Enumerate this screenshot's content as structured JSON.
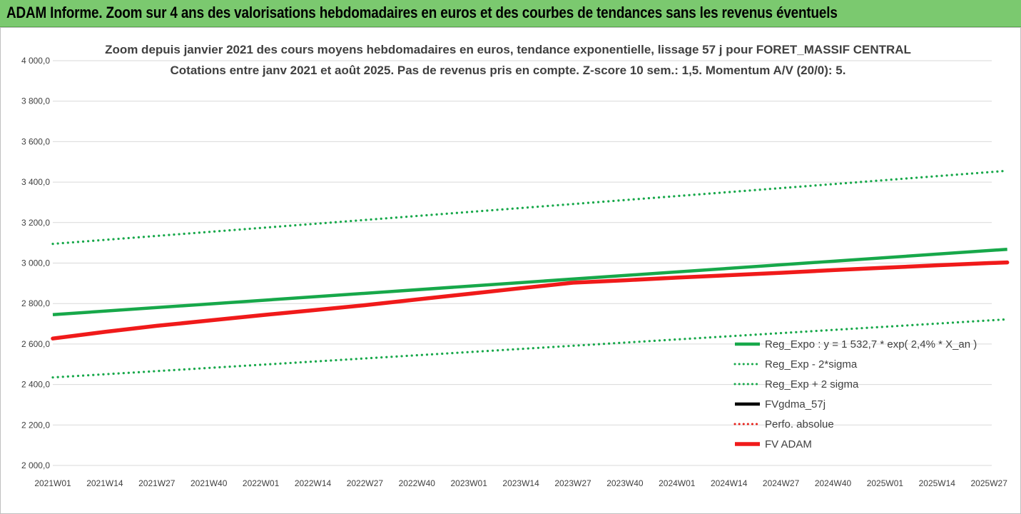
{
  "banner": {
    "title": "ADAM Informe. Zoom sur 4 ans des valorisations hebdomadaires en euros et des courbes de tendances sans les revenus éventuels"
  },
  "chart_data": {
    "type": "line",
    "title": "Zoom depuis janvier 2021 des cours moyens hebdomadaires en euros, tendance exponentielle, lissage 57 j pour FORET_MASSIF CENTRAL",
    "subtitle": "Cotations entre janv 2021 et août 2025.  Pas de revenus pris en compte. Z-score 10 sem.: 1,5. Momentum A/V (20/0): 5.",
    "xlabel": "",
    "ylabel": "",
    "ylim": [
      2000,
      4000
    ],
    "ytick_labels": [
      "2 000,0",
      "2 200,0",
      "2 400,0",
      "2 600,0",
      "2 800,0",
      "3 000,0",
      "3 200,0",
      "3 400,0",
      "3 600,0",
      "3 800,0",
      "4 000,0"
    ],
    "ytick_values": [
      2000,
      2200,
      2400,
      2600,
      2800,
      3000,
      3200,
      3400,
      3600,
      3800,
      4000
    ],
    "x_categories": [
      "2021W01",
      "2021W14",
      "2021W27",
      "2021W40",
      "2022W01",
      "2022W14",
      "2022W27",
      "2022W40",
      "2023W01",
      "2023W14",
      "2023W27",
      "2023W40",
      "2024W01",
      "2024W14",
      "2024W27",
      "2024W40",
      "2025W01",
      "2025W14",
      "2025W27"
    ],
    "x_end_index": 18.35,
    "grid": "horizontal",
    "legend_position": "bottom-right",
    "series": [
      {
        "key": "reg",
        "name": "Reg_Expo : y = 1 532,7 * exp( 2,4% *  X_an )",
        "color": "#17a84a",
        "style": "solid",
        "x": [
          0,
          18.35
        ],
        "values": [
          2745,
          3068
        ]
      },
      {
        "key": "lo",
        "name": "Reg_Exp - 2*sigma",
        "color": "#17a84a",
        "style": "dotted",
        "x": [
          0,
          18.35
        ],
        "values": [
          2435,
          2722
        ]
      },
      {
        "key": "hi",
        "name": "Reg_Exp + 2 sigma",
        "color": "#17a84a",
        "style": "dotted",
        "x": [
          0,
          18.35
        ],
        "values": [
          3095,
          3456
        ]
      },
      {
        "key": "gdma",
        "name": "FVgdma_57j",
        "color": "#000000",
        "style": "solid",
        "x": [],
        "values": []
      },
      {
        "key": "perfo",
        "name": "Perfo. absolue",
        "color": "#e8211b",
        "style": "dotted",
        "x": [],
        "values": []
      },
      {
        "key": "adam",
        "name": "FV ADAM",
        "color": "#f01a1a",
        "style": "solid-thick",
        "x": [
          0,
          1,
          2,
          3,
          4,
          5,
          6,
          7,
          8,
          9,
          10,
          11,
          12,
          13,
          14,
          15,
          16,
          17,
          18,
          18.35
        ],
        "values": [
          2627,
          2660,
          2690,
          2716,
          2742,
          2767,
          2792,
          2820,
          2848,
          2876,
          2903,
          2915,
          2928,
          2940,
          2952,
          2965,
          2977,
          2989,
          3000,
          3003
        ]
      }
    ]
  }
}
